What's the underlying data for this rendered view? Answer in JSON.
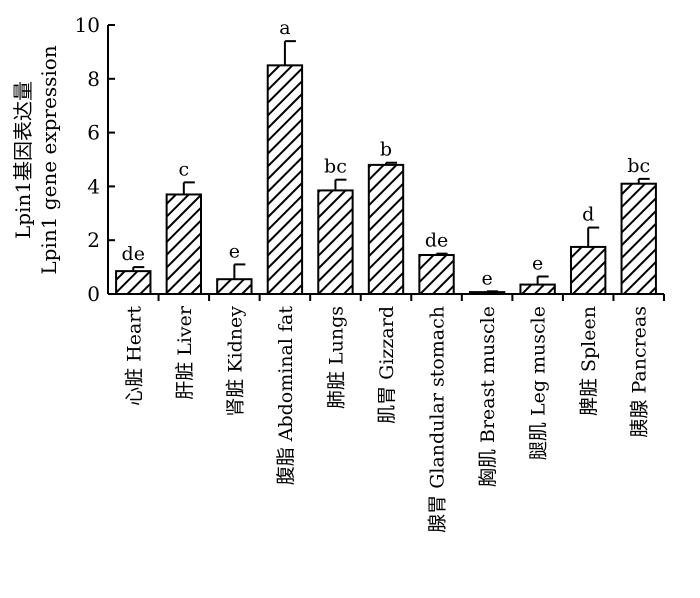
{
  "chart_data": {
    "type": "bar",
    "title": "",
    "ylabel_cn": "Lpin1基因表达量",
    "ylabel_en": "Lpin1 gene expression",
    "ylim": [
      0,
      10
    ],
    "yticks": [
      "0",
      "2",
      "4",
      "6",
      "8",
      "10"
    ],
    "bar_pattern": "diagonal-hatch",
    "categories": [
      "心脏 Heart",
      "肝脏 Liver",
      "肾脏 Kidney",
      "腹脂 Abdominal fat",
      "肺脏 Lungs",
      "肌胃 Gizzard",
      "腺胃 Glandular stomach",
      "胸肌 Breast muscle",
      "腿肌 Leg muscle",
      "脾脏 Spleen",
      "胰腺 Pancreas"
    ],
    "values": [
      0.85,
      3.7,
      0.55,
      8.5,
      3.85,
      4.8,
      1.45,
      0.07,
      0.35,
      1.75,
      4.1
    ],
    "errors": [
      0.15,
      0.45,
      0.55,
      0.9,
      0.4,
      0.08,
      0.05,
      0.03,
      0.3,
      0.72,
      0.18
    ],
    "significance": [
      "de",
      "c",
      "e",
      "a",
      "bc",
      "b",
      "de",
      "e",
      "e",
      "d",
      "bc"
    ]
  }
}
